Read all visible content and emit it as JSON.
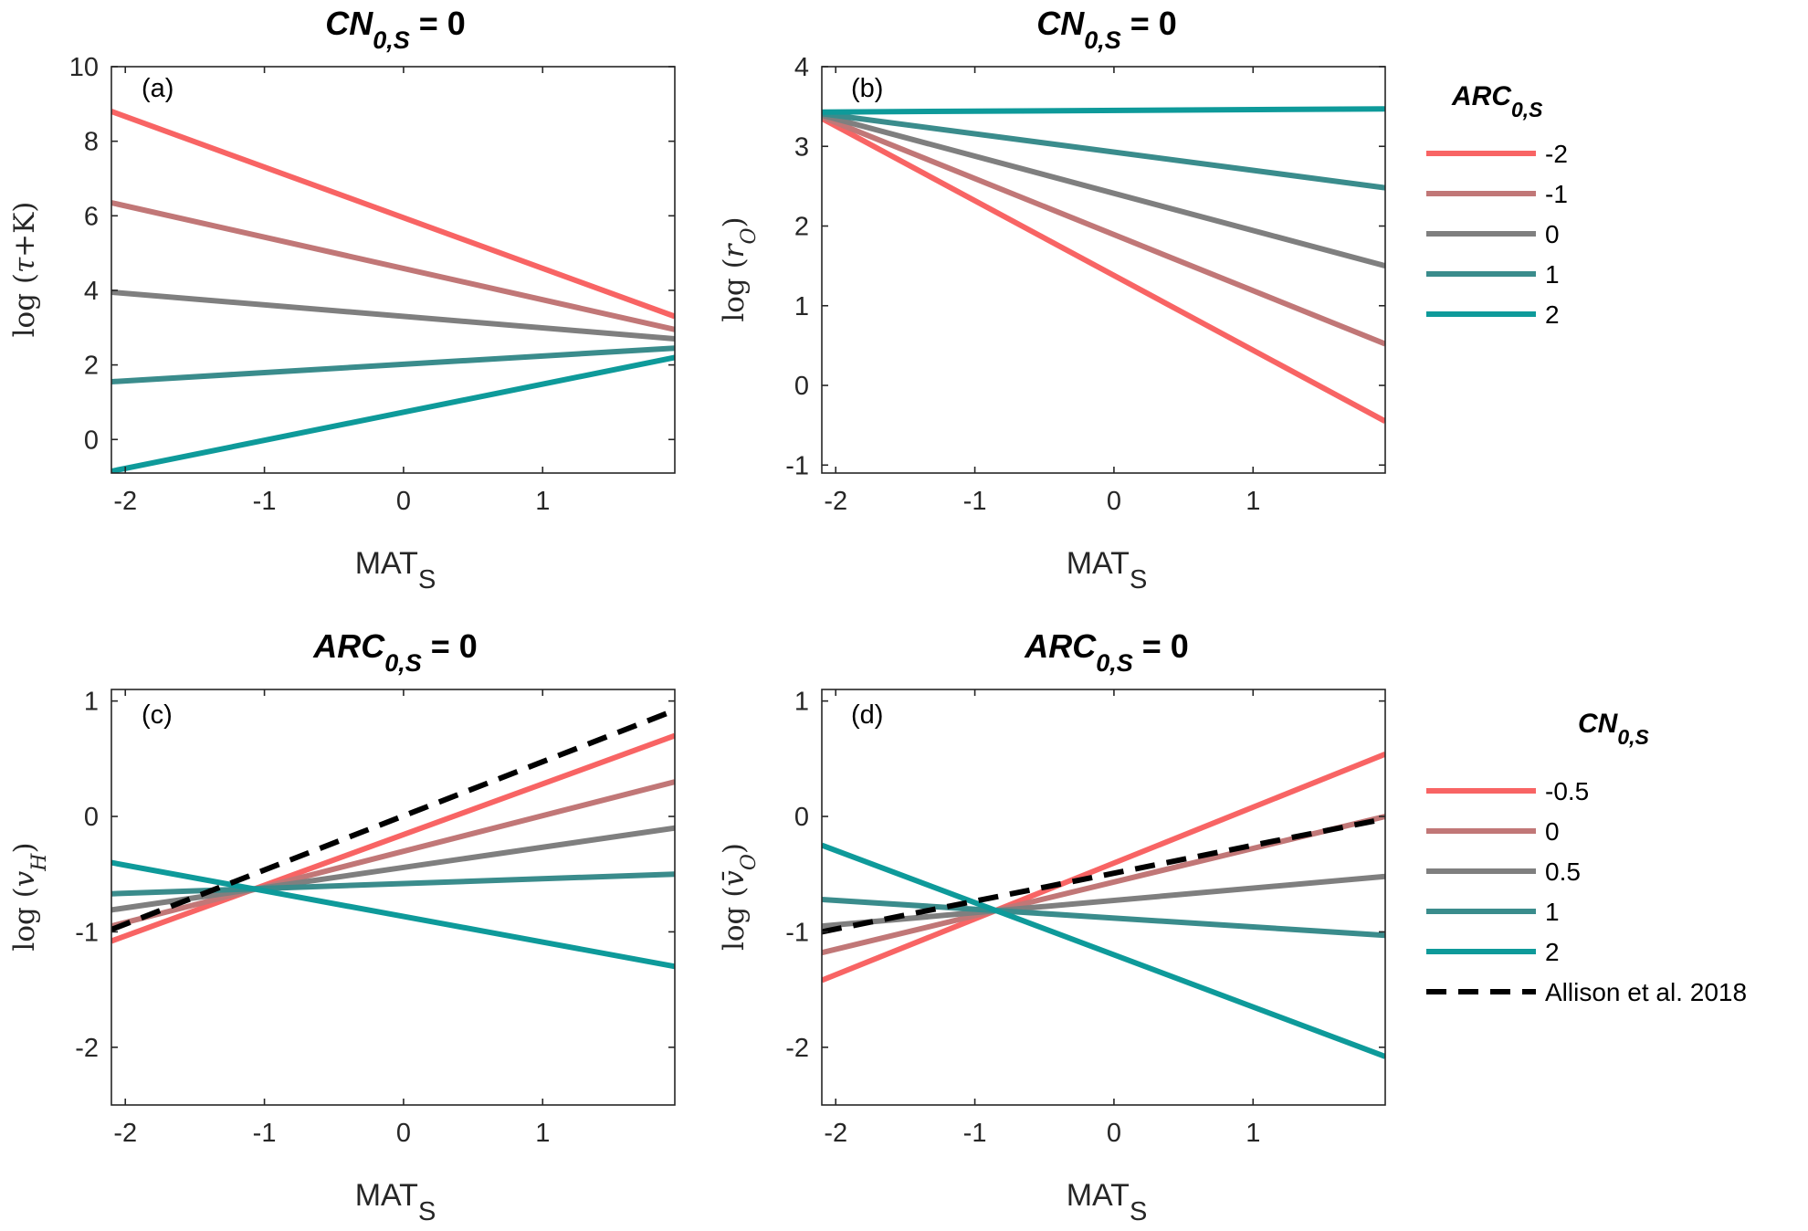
{
  "colors": {
    "red": "#F86464",
    "rose": "#C17777",
    "gray": "#7F7F7F",
    "teal_dark": "#3A8C8C",
    "teal": "#0E9A9A",
    "black": "#000000"
  },
  "chart_data": [
    {
      "id": "a",
      "type": "line",
      "panel_label": "(a)",
      "title": {
        "var": "CN",
        "sub": "0,S",
        "eq": " = 0"
      },
      "xlabel": {
        "main": "MAT",
        "sub": "S"
      },
      "ylabel": "log (τ+K)",
      "xlim": [
        -2.1,
        1.95
      ],
      "ylim": [
        -0.9,
        10
      ],
      "xticks": [
        -2,
        -1,
        0,
        1
      ],
      "yticks": [
        0,
        2,
        4,
        6,
        8,
        10
      ],
      "series": [
        {
          "name": "-2",
          "color_key": "red",
          "x": [
            -2.1,
            1.95
          ],
          "y": [
            8.8,
            3.3
          ]
        },
        {
          "name": "-1",
          "color_key": "rose",
          "x": [
            -2.1,
            1.95
          ],
          "y": [
            6.35,
            2.95
          ]
        },
        {
          "name": "0",
          "color_key": "gray",
          "x": [
            -2.1,
            1.95
          ],
          "y": [
            3.95,
            2.7
          ]
        },
        {
          "name": "1",
          "color_key": "teal_dark",
          "x": [
            -2.1,
            1.95
          ],
          "y": [
            1.55,
            2.45
          ]
        },
        {
          "name": "2",
          "color_key": "teal",
          "x": [
            -2.1,
            1.95
          ],
          "y": [
            -0.85,
            2.2
          ]
        }
      ]
    },
    {
      "id": "b",
      "type": "line",
      "panel_label": "(b)",
      "title": {
        "var": "CN",
        "sub": "0,S",
        "eq": " = 0"
      },
      "xlabel": {
        "main": "MAT",
        "sub": "S"
      },
      "ylabel": "log (r_O)",
      "xlim": [
        -2.1,
        1.95
      ],
      "ylim": [
        -1.1,
        4
      ],
      "xticks": [
        -2,
        -1,
        0,
        1
      ],
      "yticks": [
        -1,
        0,
        1,
        2,
        3,
        4
      ],
      "series": [
        {
          "name": "-2",
          "color_key": "red",
          "x": [
            -2.1,
            1.95
          ],
          "y": [
            3.35,
            -0.45
          ]
        },
        {
          "name": "-1",
          "color_key": "rose",
          "x": [
            -2.1,
            1.95
          ],
          "y": [
            3.37,
            0.52
          ]
        },
        {
          "name": "0",
          "color_key": "gray",
          "x": [
            -2.1,
            1.95
          ],
          "y": [
            3.39,
            1.5
          ]
        },
        {
          "name": "1",
          "color_key": "teal_dark",
          "x": [
            -2.1,
            1.95
          ],
          "y": [
            3.41,
            2.48
          ]
        },
        {
          "name": "2",
          "color_key": "teal",
          "x": [
            -2.1,
            1.95
          ],
          "y": [
            3.43,
            3.47
          ]
        }
      ]
    },
    {
      "id": "c",
      "type": "line",
      "panel_label": "(c)",
      "title": {
        "var": "ARC",
        "sub": "0,S",
        "eq": " = 0"
      },
      "xlabel": {
        "main": "MAT",
        "sub": "S"
      },
      "ylabel": "log (v_H)",
      "xlim": [
        -2.1,
        1.95
      ],
      "ylim": [
        -2.5,
        1.1
      ],
      "xticks": [
        -2,
        -1,
        0,
        1
      ],
      "yticks": [
        -2,
        -1,
        0,
        1
      ],
      "series": [
        {
          "name": "-0.5",
          "color_key": "red",
          "x": [
            -2.1,
            1.95
          ],
          "y": [
            -1.08,
            0.7
          ]
        },
        {
          "name": "0",
          "color_key": "rose",
          "x": [
            -2.1,
            1.95
          ],
          "y": [
            -0.95,
            0.3
          ]
        },
        {
          "name": "0.5",
          "color_key": "gray",
          "x": [
            -2.1,
            1.95
          ],
          "y": [
            -0.81,
            -0.1
          ]
        },
        {
          "name": "1",
          "color_key": "teal_dark",
          "x": [
            -2.1,
            1.95
          ],
          "y": [
            -0.67,
            -0.5
          ]
        },
        {
          "name": "2",
          "color_key": "teal",
          "x": [
            -2.1,
            1.95
          ],
          "y": [
            -0.4,
            -1.3
          ]
        },
        {
          "name": "Allison et al. 2018",
          "color_key": "black",
          "dashed": true,
          "x": [
            -2.1,
            1.95
          ],
          "y": [
            -0.98,
            0.92
          ]
        }
      ]
    },
    {
      "id": "d",
      "type": "line",
      "panel_label": "(d)",
      "title": {
        "var": "ARC",
        "sub": "0,S",
        "eq": " = 0"
      },
      "xlabel": {
        "main": "MAT",
        "sub": "S"
      },
      "ylabel": "log (v̄_O)",
      "xlim": [
        -2.1,
        1.95
      ],
      "ylim": [
        -2.5,
        1.1
      ],
      "xticks": [
        -2,
        -1,
        0,
        1
      ],
      "yticks": [
        -2,
        -1,
        0,
        1
      ],
      "series": [
        {
          "name": "-0.5",
          "color_key": "red",
          "x": [
            -2.1,
            1.95
          ],
          "y": [
            -1.42,
            0.54
          ]
        },
        {
          "name": "0",
          "color_key": "rose",
          "x": [
            -2.1,
            1.95
          ],
          "y": [
            -1.18,
            0.0
          ]
        },
        {
          "name": "0.5",
          "color_key": "gray",
          "x": [
            -2.1,
            1.95
          ],
          "y": [
            -0.95,
            -0.52
          ]
        },
        {
          "name": "1",
          "color_key": "teal_dark",
          "x": [
            -2.1,
            1.95
          ],
          "y": [
            -0.72,
            -1.03
          ]
        },
        {
          "name": "2",
          "color_key": "teal",
          "x": [
            -2.1,
            1.95
          ],
          "y": [
            -0.25,
            -2.08
          ]
        },
        {
          "name": "Allison et al. 2018",
          "color_key": "black",
          "dashed": true,
          "x": [
            -2.1,
            1.95
          ],
          "y": [
            -1.0,
            -0.02
          ]
        }
      ]
    }
  ],
  "legends": [
    {
      "id": "legend-top",
      "title": {
        "var": "ARC",
        "sub": "0,S"
      },
      "entries": [
        {
          "label": "-2",
          "color_key": "red"
        },
        {
          "label": "-1",
          "color_key": "rose"
        },
        {
          "label": "0",
          "color_key": "gray"
        },
        {
          "label": "1",
          "color_key": "teal_dark"
        },
        {
          "label": "2",
          "color_key": "teal"
        }
      ]
    },
    {
      "id": "legend-bottom",
      "title": {
        "var": "CN",
        "sub": "0,S"
      },
      "entries": [
        {
          "label": "-0.5",
          "color_key": "red"
        },
        {
          "label": "0",
          "color_key": "rose"
        },
        {
          "label": "0.5",
          "color_key": "gray"
        },
        {
          "label": "1",
          "color_key": "teal_dark"
        },
        {
          "label": "2",
          "color_key": "teal"
        },
        {
          "label": "Allison et al. 2018",
          "color_key": "black",
          "dashed": true
        }
      ]
    }
  ]
}
